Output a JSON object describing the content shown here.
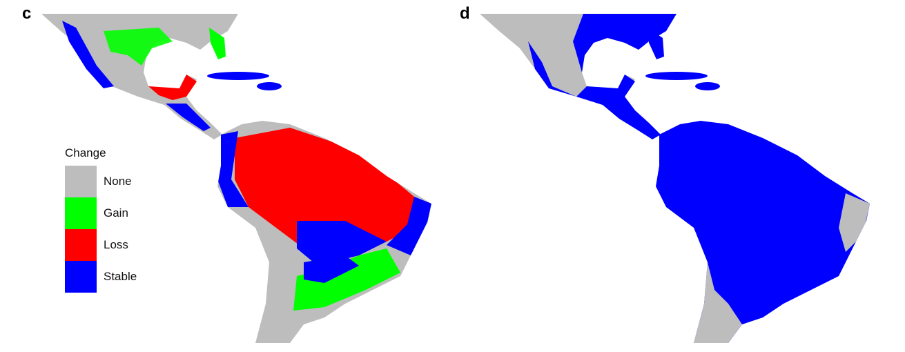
{
  "panels": [
    {
      "label": "c",
      "scenario": "change"
    },
    {
      "label": "d",
      "scenario": "stable-dominant"
    }
  ],
  "legend": {
    "title": "Change",
    "items": [
      {
        "label": "None",
        "color": "#bdbdbd"
      },
      {
        "label": "Gain",
        "color": "#00ff00"
      },
      {
        "label": "Loss",
        "color": "#ff0000"
      },
      {
        "label": "Stable",
        "color": "#0000ff"
      }
    ]
  }
}
